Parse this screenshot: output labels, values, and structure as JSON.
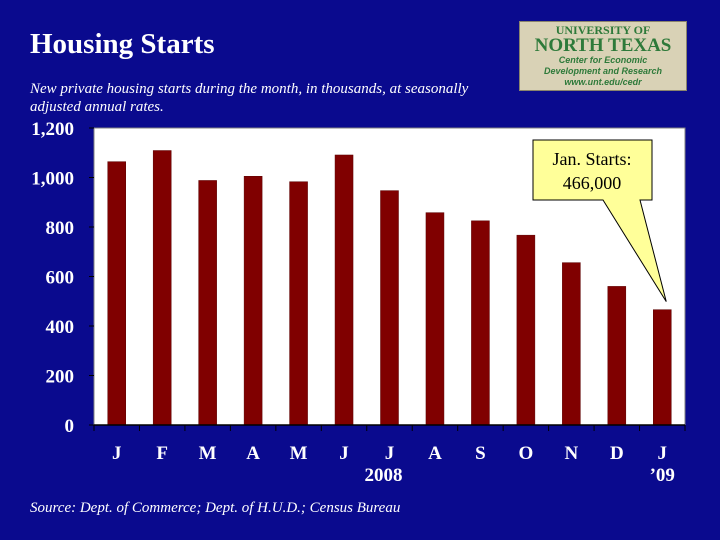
{
  "slide": {
    "title": "Housing Starts",
    "subtitle": "New private housing starts during the month, in thousands, at seasonally adjusted annual rates.",
    "source": "Source:  Dept. of Commerce; Dept. of H.U.D.; Census Bureau"
  },
  "logo": {
    "line1": "UNIVERSITY OF",
    "line2": "NORTH TEXAS",
    "line3": "Center for Economic",
    "line4": "Development and Research",
    "line5": "www.unt.edu/cedr",
    "green": "#2e7a3a",
    "text_color": "#2e7a3a"
  },
  "callout": {
    "line1": "Jan. Starts:",
    "line2": "466,000",
    "fill": "#ffff99"
  },
  "chart_data": {
    "type": "bar",
    "categories": [
      "J",
      "F",
      "M",
      "A",
      "M",
      "J",
      "J",
      "A",
      "S",
      "O",
      "N",
      "D",
      "J"
    ],
    "year_labels": [
      {
        "text": "2008",
        "under_index": 6
      },
      {
        "text": "’09",
        "under_index": 12
      }
    ],
    "values": [
      1064,
      1109,
      988,
      1005,
      983,
      1091,
      947,
      858,
      825,
      767,
      656,
      560,
      466
    ],
    "ylim": [
      0,
      1200
    ],
    "yticks": [
      "0",
      "200",
      "400",
      "600",
      "800",
      "1,000",
      "1,200"
    ],
    "bar_color": "#800000",
    "plot_bg": "#ffffff",
    "grid": false
  }
}
